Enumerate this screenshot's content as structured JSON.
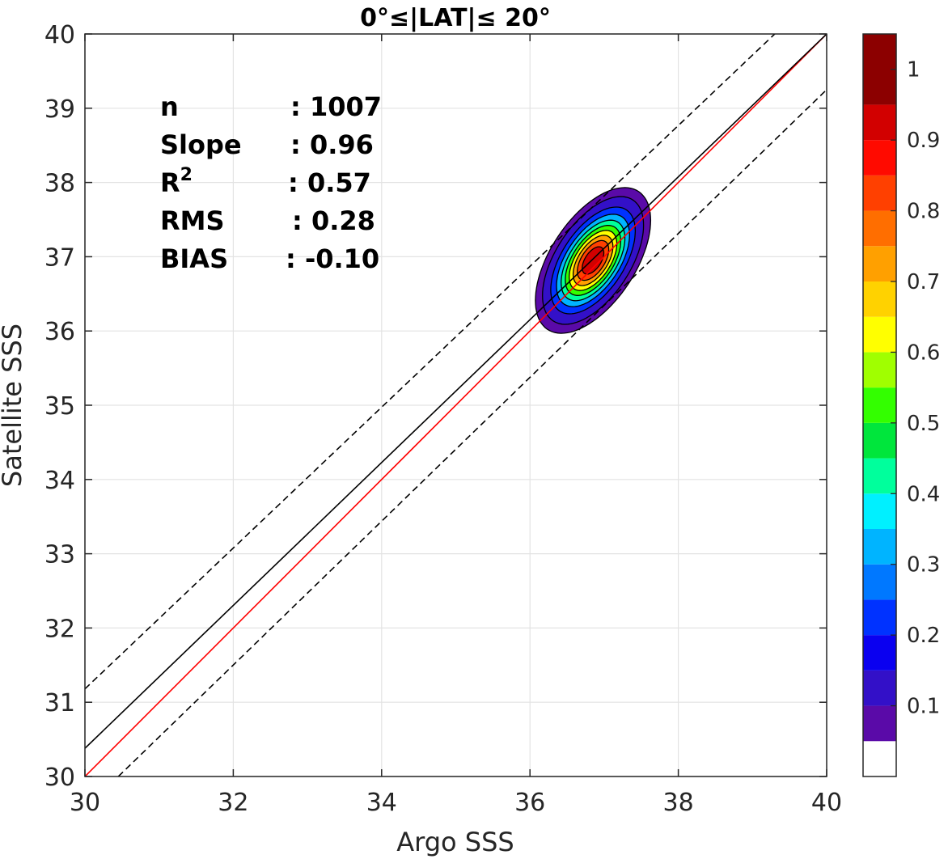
{
  "chart_data": {
    "type": "contour",
    "title": "0°≤|LAT|≤ 20°",
    "xlabel": "Argo SSS",
    "ylabel": "Satellite SSS",
    "xlim": [
      30,
      40
    ],
    "ylim": [
      30,
      40
    ],
    "xticks": [
      "30",
      "32",
      "34",
      "36",
      "38",
      "40"
    ],
    "yticks": [
      "30",
      "31",
      "32",
      "33",
      "34",
      "35",
      "36",
      "37",
      "38",
      "39",
      "40"
    ],
    "grid": true,
    "stats": [
      {
        "label": "n",
        "value": ": 1007"
      },
      {
        "label": "Slope",
        "value": ": 0.96"
      },
      {
        "label": "R",
        "sup": "2",
        "value": ": 0.57"
      },
      {
        "label": "RMS",
        "value": ": 0.28"
      },
      {
        "label": "BIAS",
        "value": ": -0.10"
      }
    ],
    "density_peak": {
      "x": 36.85,
      "y": 36.95,
      "sx": 0.38,
      "sy": 0.48,
      "rho": 0.55
    },
    "density_contour_levels": [
      0.05,
      0.1,
      0.2,
      0.3,
      0.4,
      0.5,
      0.6,
      0.7,
      0.8,
      0.9
    ],
    "lines": [
      {
        "name": "1:1 line",
        "color": "#ff0000",
        "style": "solid",
        "points": [
          [
            30,
            30
          ],
          [
            40,
            40
          ]
        ]
      },
      {
        "name": "regression fit",
        "color": "#000000",
        "style": "solid",
        "points": [
          [
            30,
            30.38
          ],
          [
            40,
            40.0
          ]
        ]
      },
      {
        "name": "upper bound",
        "color": "#000000",
        "style": "dashed",
        "points": [
          [
            30,
            31.18
          ],
          [
            39.3,
            40.0
          ]
        ]
      },
      {
        "name": "lower bound",
        "color": "#000000",
        "style": "dashed",
        "points": [
          [
            30.45,
            30
          ],
          [
            40,
            39.25
          ]
        ]
      }
    ],
    "colorbar": {
      "range": [
        0,
        1.05
      ],
      "ticks": [
        "0.1",
        "0.2",
        "0.3",
        "0.4",
        "0.5",
        "0.6",
        "0.7",
        "0.8",
        "0.9",
        "1"
      ],
      "bins": [
        {
          "from": 0.0,
          "to": 0.05,
          "color": "#ffffff"
        },
        {
          "from": 0.05,
          "to": 0.1,
          "color": "#5a0aa8"
        },
        {
          "from": 0.1,
          "to": 0.15,
          "color": "#3310c8"
        },
        {
          "from": 0.15,
          "to": 0.2,
          "color": "#0a00f0"
        },
        {
          "from": 0.2,
          "to": 0.25,
          "color": "#0032ff"
        },
        {
          "from": 0.25,
          "to": 0.3,
          "color": "#0078ff"
        },
        {
          "from": 0.3,
          "to": 0.35,
          "color": "#00b4ff"
        },
        {
          "from": 0.35,
          "to": 0.4,
          "color": "#00f0ff"
        },
        {
          "from": 0.4,
          "to": 0.45,
          "color": "#00ff9c"
        },
        {
          "from": 0.45,
          "to": 0.5,
          "color": "#00e63c"
        },
        {
          "from": 0.5,
          "to": 0.55,
          "color": "#33ff00"
        },
        {
          "from": 0.55,
          "to": 0.6,
          "color": "#a0ff00"
        },
        {
          "from": 0.6,
          "to": 0.65,
          "color": "#ffff00"
        },
        {
          "from": 0.65,
          "to": 0.7,
          "color": "#ffd200"
        },
        {
          "from": 0.7,
          "to": 0.75,
          "color": "#ffa000"
        },
        {
          "from": 0.75,
          "to": 0.8,
          "color": "#ff6e00"
        },
        {
          "from": 0.8,
          "to": 0.85,
          "color": "#ff4000"
        },
        {
          "from": 0.85,
          "to": 0.9,
          "color": "#ff0a00"
        },
        {
          "from": 0.9,
          "to": 0.95,
          "color": "#d20000"
        },
        {
          "from": 0.95,
          "to": 1.05,
          "color": "#8c0000"
        }
      ]
    }
  }
}
